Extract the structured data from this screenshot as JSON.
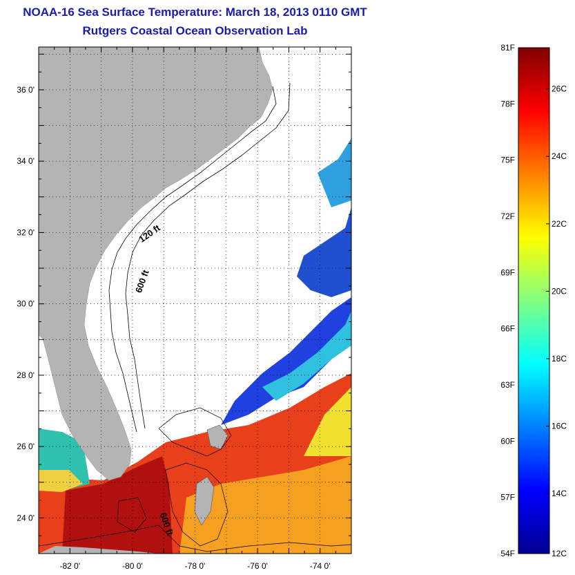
{
  "title": {
    "line1": "NOAA-16 Sea Surface Temperature:  March 18, 2013 0110 GMT",
    "line2": "Rutgers Coastal Ocean Observation Lab"
  },
  "map": {
    "lat_range": [
      23.0,
      37.2
    ],
    "lon_range": [
      -83.0,
      -73.0
    ],
    "lat_ticks": [
      {
        "value": 36,
        "label": "36 0'"
      },
      {
        "value": 34,
        "label": "34 0'"
      },
      {
        "value": 32,
        "label": "32 0'"
      },
      {
        "value": 30,
        "label": "30 0'"
      },
      {
        "value": 28,
        "label": "28 0'"
      },
      {
        "value": 26,
        "label": "26 0'"
      },
      {
        "value": 24,
        "label": "24 0'"
      }
    ],
    "lon_ticks": [
      {
        "value": -82,
        "label": "-82 0'"
      },
      {
        "value": -80,
        "label": "-80 0'"
      },
      {
        "value": -78,
        "label": "-78 0'"
      },
      {
        "value": -76,
        "label": "-76 0'"
      },
      {
        "value": -74,
        "label": "-74 0'"
      }
    ],
    "grid": "dotted",
    "land_color": "#b4b4b4",
    "cloud_color": "#ffffff",
    "contour_labels": [
      {
        "text": "120 ft",
        "lon": -79.4,
        "lat": 31.9,
        "angle": -35
      },
      {
        "text": "600 ft",
        "lon": -79.6,
        "lat": 30.6,
        "angle": -70
      },
      {
        "text": "600 ft",
        "lon": -79.0,
        "lat": 23.8,
        "angle": 70
      }
    ]
  },
  "colorbar": {
    "fahrenheit_labels": [
      "81F",
      "78F",
      "75F",
      "72F",
      "69F",
      "66F",
      "63F",
      "60F",
      "57F",
      "54F"
    ],
    "celsius_labels": [
      "26C",
      "24C",
      "22C",
      "20C",
      "18C",
      "16C",
      "14C",
      "12C"
    ],
    "range_c": [
      12.2,
      27.2
    ],
    "stops": [
      "#00008f",
      "#0000ff",
      "#0080ff",
      "#00ffff",
      "#80ff80",
      "#ffff00",
      "#ff8000",
      "#ff0000",
      "#800000"
    ]
  }
}
